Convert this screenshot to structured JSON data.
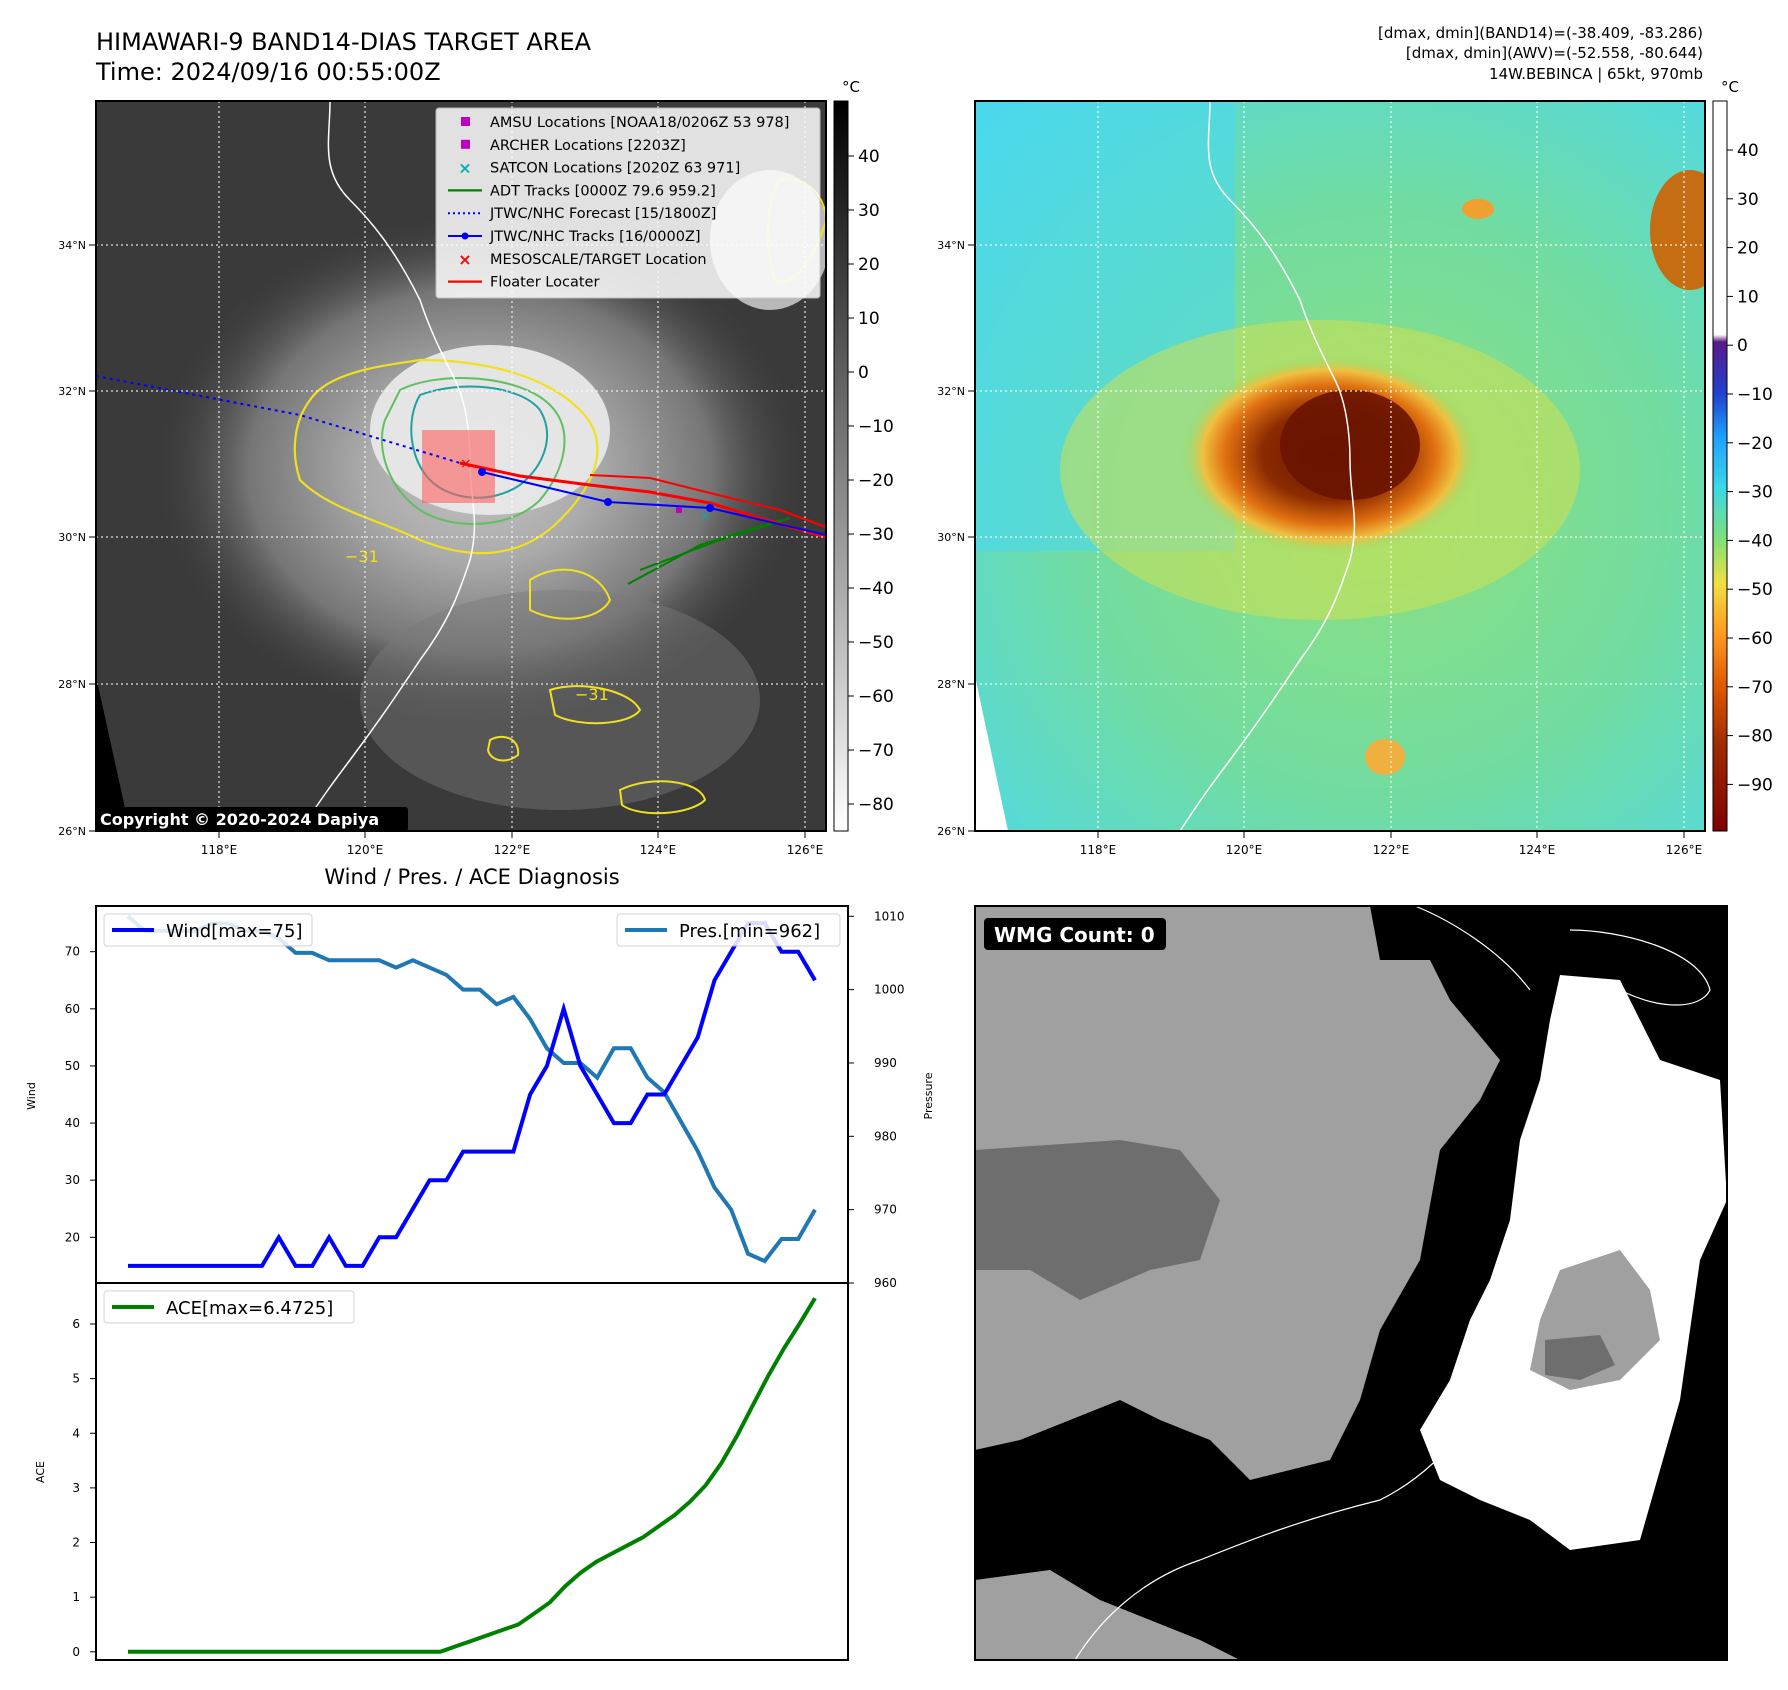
{
  "header": {
    "title_line1": "HIMAWARI-9 BAND14-DIAS TARGET AREA",
    "title_line2": "Time: 2024/09/16 00:55:00Z",
    "right_line1": "[dmax, dmin](BAND14)=(-38.409, -83.286)",
    "right_line2": "[dmax, dmin](AWV)=(-52.558, -80.644)",
    "right_line3": "14W.BEBINCA | 65kt, 970mb"
  },
  "maps": {
    "lon_ticks": [
      "118°E",
      "120°E",
      "122°E",
      "124°E",
      "126°E"
    ],
    "lat_ticks": [
      "34°N",
      "32°N",
      "30°N",
      "28°N",
      "26°N"
    ],
    "colorbar_unit": "°C",
    "ir_colorbar_ticks": [
      "40",
      "30",
      "20",
      "10",
      "0",
      "−10",
      "−20",
      "−30",
      "−40",
      "−50",
      "−60",
      "−70",
      "−80"
    ],
    "awv_colorbar_ticks": [
      "40",
      "30",
      "20",
      "10",
      "0",
      "−10",
      "−20",
      "−30",
      "−40",
      "−50",
      "−60",
      "−70",
      "−80",
      "−90"
    ],
    "copyright": "Copyright © 2020-2024 Dapiya",
    "contour_label": "−31",
    "legend": [
      {
        "label": "AMSU Locations [NOAA18/0206Z 53 978]",
        "color": "#c000c0",
        "marker": "square"
      },
      {
        "label": "ARCHER Locations [2203Z]",
        "color": "#c000c0",
        "marker": "square"
      },
      {
        "label": "SATCON Locations [2020Z 63 971]",
        "color": "#00b0b0",
        "marker": "x"
      },
      {
        "label": "ADT Tracks [0000Z 79.6 959.2]",
        "color": "#008000",
        "marker": "line"
      },
      {
        "label": "JTWC/NHC Forecast [15/1800Z]",
        "color": "#0000ff",
        "marker": "dotted"
      },
      {
        "label": "JTWC/NHC Tracks [16/0000Z]",
        "color": "#0000ff",
        "marker": "line-dot"
      },
      {
        "label": "MESOSCALE/TARGET Location",
        "color": "#ff0000",
        "marker": "x"
      },
      {
        "label": "Floater Locater",
        "color": "#ff0000",
        "marker": "line"
      }
    ],
    "wmg_label": "WMG Count: 0"
  },
  "chart_data": [
    {
      "type": "line",
      "title": "Wind / Pres. / ACE Diagnosis",
      "ylabel": "Wind",
      "y2label": "Pressure",
      "ylim": [
        12,
        78
      ],
      "y2lim": [
        960,
        1011.4
      ],
      "yticks": [
        20,
        30,
        40,
        50,
        60,
        70
      ],
      "y2ticks": [
        960,
        970,
        980,
        990,
        1000,
        1010
      ],
      "legend_left": "Wind[max=75]",
      "legend_right": "Pres.[min=962]",
      "series": [
        {
          "name": "Wind[max=75]",
          "axis": "left",
          "color": "#0000ff",
          "values": [
            15,
            15,
            15,
            15,
            15,
            15,
            15,
            15,
            15,
            20,
            15,
            15,
            20,
            15,
            15,
            20,
            20,
            25,
            30,
            30,
            35,
            35,
            35,
            35,
            45,
            50,
            60,
            50,
            45,
            40,
            40,
            45,
            45,
            50,
            55,
            65,
            70,
            75,
            75,
            70,
            70,
            65
          ]
        },
        {
          "name": "Pres.[min=962]",
          "axis": "right",
          "color": "#1f77b4",
          "values": [
            1010,
            1008,
            1008,
            1008,
            1008,
            1009,
            1009,
            1008,
            1008,
            1007,
            1005,
            1005,
            1004,
            1004,
            1004,
            1004,
            1003,
            1004,
            1003,
            1002,
            1000,
            1000,
            998,
            999,
            996,
            992,
            990,
            990,
            988,
            992,
            992,
            988,
            986,
            982,
            978,
            973,
            970,
            964,
            963,
            966,
            966,
            970
          ]
        }
      ]
    },
    {
      "type": "line",
      "ylabel": "ACE",
      "ylim": [
        -0.15,
        6.75
      ],
      "yticks": [
        0,
        1,
        2,
        3,
        4,
        5,
        6
      ],
      "legend": "ACE[max=6.4725]",
      "series": [
        {
          "name": "ACE[max=6.4725]",
          "color": "#008000",
          "values": [
            0,
            0,
            0,
            0,
            0,
            0,
            0,
            0,
            0,
            0,
            0,
            0,
            0,
            0,
            0,
            0,
            0,
            0,
            0,
            0,
            0.0,
            0.1,
            0.2,
            0.3,
            0.4,
            0.5,
            0.7,
            0.9,
            1.2,
            1.45,
            1.65,
            1.8,
            1.95,
            2.1,
            2.3,
            2.5,
            2.75,
            3.05,
            3.45,
            3.95,
            4.5,
            5.05,
            5.55,
            6.0,
            6.4725
          ]
        }
      ]
    }
  ]
}
